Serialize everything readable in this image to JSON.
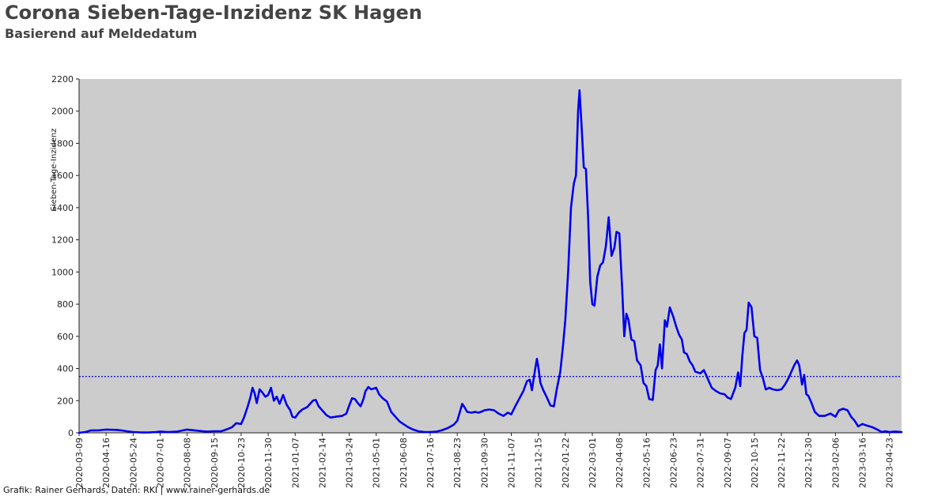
{
  "title": "Corona Sieben-Tage-Inzidenz SK Hagen",
  "subtitle": "Basierend auf Meldedatum",
  "footer": "Grafik: Rainer Gerhards, Daten: RKI | www.rainer-gerhards.de",
  "colors": {
    "plot_background": "#cccccc",
    "line": "#0000ee",
    "threshold": "#0000cc"
  },
  "chart_data": {
    "type": "line",
    "title": "Corona Sieben-Tage-Inzidenz SK Hagen",
    "subtitle": "Basierend auf Meldedatum",
    "xlabel": "",
    "ylabel": "Sieben-Tage-Inzidenz",
    "xlim": [
      "2020-03-09",
      "2023-05-10"
    ],
    "ylim": [
      0,
      2200
    ],
    "yticks": [
      0,
      200,
      400,
      600,
      800,
      1000,
      1200,
      1400,
      1600,
      1800,
      2000,
      2200
    ],
    "xticks": [
      "2020-03-09",
      "2020-04-16",
      "2020-05-24",
      "2020-07-01",
      "2020-08-08",
      "2020-09-15",
      "2020-10-23",
      "2020-11-30",
      "2021-01-07",
      "2021-02-14",
      "2021-03-24",
      "2021-05-01",
      "2021-06-08",
      "2021-07-16",
      "2021-08-23",
      "2021-09-30",
      "2021-11-07",
      "2021-12-15",
      "2022-01-22",
      "2022-03-01",
      "2022-04-08",
      "2022-05-16",
      "2022-06-23",
      "2022-07-31",
      "2022-09-07",
      "2022-10-15",
      "2022-11-22",
      "2022-12-30",
      "2023-02-06",
      "2023-03-16",
      "2023-04-23"
    ],
    "grid": false,
    "reference_line": {
      "y": 350,
      "style": "dotted"
    },
    "series": [
      {
        "points": [
          [
            "2020-03-09",
            0
          ],
          [
            "2020-03-18",
            5
          ],
          [
            "2020-03-26",
            15
          ],
          [
            "2020-04-05",
            15
          ],
          [
            "2020-04-16",
            20
          ],
          [
            "2020-04-30",
            18
          ],
          [
            "2020-05-07",
            15
          ],
          [
            "2020-05-15",
            10
          ],
          [
            "2020-05-24",
            5
          ],
          [
            "2020-06-05",
            2
          ],
          [
            "2020-06-15",
            2
          ],
          [
            "2020-06-25",
            5
          ],
          [
            "2020-07-01",
            8
          ],
          [
            "2020-07-12",
            5
          ],
          [
            "2020-07-25",
            8
          ],
          [
            "2020-08-08",
            20
          ],
          [
            "2020-08-25",
            12
          ],
          [
            "2020-09-05",
            8
          ],
          [
            "2020-09-15",
            10
          ],
          [
            "2020-09-25",
            10
          ],
          [
            "2020-10-02",
            20
          ],
          [
            "2020-10-10",
            35
          ],
          [
            "2020-10-16",
            60
          ],
          [
            "2020-10-23",
            55
          ],
          [
            "2020-10-27",
            95
          ],
          [
            "2020-11-01",
            160
          ],
          [
            "2020-11-05",
            220
          ],
          [
            "2020-11-08",
            280
          ],
          [
            "2020-11-11",
            245
          ],
          [
            "2020-11-14",
            185
          ],
          [
            "2020-11-18",
            270
          ],
          [
            "2020-11-22",
            250
          ],
          [
            "2020-11-26",
            225
          ],
          [
            "2020-11-30",
            235
          ],
          [
            "2020-12-04",
            280
          ],
          [
            "2020-12-08",
            200
          ],
          [
            "2020-12-12",
            225
          ],
          [
            "2020-12-16",
            180
          ],
          [
            "2020-12-21",
            235
          ],
          [
            "2020-12-26",
            175
          ],
          [
            "2020-12-31",
            140
          ],
          [
            "2021-01-03",
            100
          ],
          [
            "2021-01-07",
            95
          ],
          [
            "2021-01-12",
            125
          ],
          [
            "2021-01-17",
            145
          ],
          [
            "2021-01-24",
            160
          ],
          [
            "2021-02-01",
            200
          ],
          [
            "2021-02-05",
            205
          ],
          [
            "2021-02-09",
            165
          ],
          [
            "2021-02-14",
            140
          ],
          [
            "2021-02-20",
            110
          ],
          [
            "2021-02-26",
            95
          ],
          [
            "2021-03-05",
            100
          ],
          [
            "2021-03-14",
            105
          ],
          [
            "2021-03-20",
            120
          ],
          [
            "2021-03-24",
            170
          ],
          [
            "2021-03-28",
            215
          ],
          [
            "2021-04-01",
            210
          ],
          [
            "2021-04-05",
            185
          ],
          [
            "2021-04-09",
            165
          ],
          [
            "2021-04-13",
            210
          ],
          [
            "2021-04-16",
            260
          ],
          [
            "2021-04-20",
            285
          ],
          [
            "2021-04-24",
            270
          ],
          [
            "2021-05-01",
            280
          ],
          [
            "2021-05-05",
            240
          ],
          [
            "2021-05-10",
            215
          ],
          [
            "2021-05-16",
            195
          ],
          [
            "2021-05-22",
            130
          ],
          [
            "2021-05-29",
            95
          ],
          [
            "2021-06-03",
            70
          ],
          [
            "2021-06-08",
            55
          ],
          [
            "2021-06-15",
            35
          ],
          [
            "2021-06-22",
            20
          ],
          [
            "2021-06-29",
            10
          ],
          [
            "2021-07-08",
            5
          ],
          [
            "2021-07-16",
            5
          ],
          [
            "2021-07-25",
            8
          ],
          [
            "2021-08-01",
            15
          ],
          [
            "2021-08-10",
            30
          ],
          [
            "2021-08-18",
            50
          ],
          [
            "2021-08-23",
            75
          ],
          [
            "2021-08-26",
            120
          ],
          [
            "2021-08-30",
            180
          ],
          [
            "2021-09-02",
            160
          ],
          [
            "2021-09-06",
            130
          ],
          [
            "2021-09-12",
            125
          ],
          [
            "2021-09-17",
            130
          ],
          [
            "2021-09-22",
            125
          ],
          [
            "2021-09-28",
            135
          ],
          [
            "2021-09-30",
            140
          ],
          [
            "2021-10-07",
            145
          ],
          [
            "2021-10-14",
            140
          ],
          [
            "2021-10-20",
            120
          ],
          [
            "2021-10-27",
            105
          ],
          [
            "2021-11-02",
            125
          ],
          [
            "2021-11-07",
            115
          ],
          [
            "2021-11-12",
            160
          ],
          [
            "2021-11-18",
            210
          ],
          [
            "2021-11-24",
            260
          ],
          [
            "2021-11-29",
            320
          ],
          [
            "2021-12-03",
            330
          ],
          [
            "2021-12-06",
            265
          ],
          [
            "2021-12-10",
            380
          ],
          [
            "2021-12-13",
            460
          ],
          [
            "2021-12-15",
            410
          ],
          [
            "2021-12-18",
            310
          ],
          [
            "2021-12-22",
            265
          ],
          [
            "2021-12-27",
            220
          ],
          [
            "2022-01-01",
            170
          ],
          [
            "2022-01-06",
            165
          ],
          [
            "2022-01-10",
            270
          ],
          [
            "2022-01-15",
            380
          ],
          [
            "2022-01-19",
            550
          ],
          [
            "2022-01-22",
            700
          ],
          [
            "2022-01-26",
            1000
          ],
          [
            "2022-01-30",
            1400
          ],
          [
            "2022-02-03",
            1550
          ],
          [
            "2022-02-06",
            1600
          ],
          [
            "2022-02-09",
            2000
          ],
          [
            "2022-02-11",
            2130
          ],
          [
            "2022-02-14",
            1900
          ],
          [
            "2022-02-17",
            1650
          ],
          [
            "2022-02-20",
            1640
          ],
          [
            "2022-02-23",
            1350
          ],
          [
            "2022-02-26",
            940
          ],
          [
            "2022-03-01",
            800
          ],
          [
            "2022-03-04",
            790
          ],
          [
            "2022-03-08",
            970
          ],
          [
            "2022-03-12",
            1040
          ],
          [
            "2022-03-16",
            1060
          ],
          [
            "2022-03-20",
            1160
          ],
          [
            "2022-03-24",
            1340
          ],
          [
            "2022-03-28",
            1100
          ],
          [
            "2022-04-01",
            1150
          ],
          [
            "2022-04-04",
            1250
          ],
          [
            "2022-04-08",
            1240
          ],
          [
            "2022-04-12",
            900
          ],
          [
            "2022-04-15",
            600
          ],
          [
            "2022-04-18",
            740
          ],
          [
            "2022-04-21",
            700
          ],
          [
            "2022-04-25",
            580
          ],
          [
            "2022-04-29",
            570
          ],
          [
            "2022-05-03",
            450
          ],
          [
            "2022-05-08",
            420
          ],
          [
            "2022-05-12",
            310
          ],
          [
            "2022-05-16",
            290
          ],
          [
            "2022-05-20",
            210
          ],
          [
            "2022-05-25",
            205
          ],
          [
            "2022-05-29",
            390
          ],
          [
            "2022-06-01",
            420
          ],
          [
            "2022-06-04",
            550
          ],
          [
            "2022-06-07",
            400
          ],
          [
            "2022-06-11",
            700
          ],
          [
            "2022-06-14",
            660
          ],
          [
            "2022-06-18",
            780
          ],
          [
            "2022-06-23",
            720
          ],
          [
            "2022-06-27",
            660
          ],
          [
            "2022-07-01",
            610
          ],
          [
            "2022-07-05",
            580
          ],
          [
            "2022-07-08",
            500
          ],
          [
            "2022-07-12",
            490
          ],
          [
            "2022-07-16",
            445
          ],
          [
            "2022-07-20",
            420
          ],
          [
            "2022-07-24",
            380
          ],
          [
            "2022-07-31",
            370
          ],
          [
            "2022-08-05",
            390
          ],
          [
            "2022-08-10",
            340
          ],
          [
            "2022-08-16",
            280
          ],
          [
            "2022-08-22",
            260
          ],
          [
            "2022-08-28",
            245
          ],
          [
            "2022-09-03",
            240
          ],
          [
            "2022-09-07",
            220
          ],
          [
            "2022-09-12",
            210
          ],
          [
            "2022-09-18",
            280
          ],
          [
            "2022-09-22",
            375
          ],
          [
            "2022-09-25",
            290
          ],
          [
            "2022-09-28",
            480
          ],
          [
            "2022-10-01",
            620
          ],
          [
            "2022-10-04",
            640
          ],
          [
            "2022-10-07",
            810
          ],
          [
            "2022-10-11",
            780
          ],
          [
            "2022-10-15",
            600
          ],
          [
            "2022-10-19",
            590
          ],
          [
            "2022-10-23",
            390
          ],
          [
            "2022-10-27",
            340
          ],
          [
            "2022-10-31",
            270
          ],
          [
            "2022-11-05",
            280
          ],
          [
            "2022-11-10",
            270
          ],
          [
            "2022-11-16",
            265
          ],
          [
            "2022-11-22",
            270
          ],
          [
            "2022-11-27",
            300
          ],
          [
            "2022-12-02",
            340
          ],
          [
            "2022-12-06",
            380
          ],
          [
            "2022-12-10",
            420
          ],
          [
            "2022-12-14",
            450
          ],
          [
            "2022-12-17",
            420
          ],
          [
            "2022-12-21",
            300
          ],
          [
            "2022-12-24",
            360
          ],
          [
            "2022-12-27",
            240
          ],
          [
            "2022-12-30",
            230
          ],
          [
            "2023-01-03",
            190
          ],
          [
            "2023-01-08",
            130
          ],
          [
            "2023-01-14",
            105
          ],
          [
            "2023-01-22",
            105
          ],
          [
            "2023-01-30",
            120
          ],
          [
            "2023-02-06",
            100
          ],
          [
            "2023-02-11",
            140
          ],
          [
            "2023-02-17",
            150
          ],
          [
            "2023-02-23",
            140
          ],
          [
            "2023-02-28",
            100
          ],
          [
            "2023-03-05",
            75
          ],
          [
            "2023-03-10",
            40
          ],
          [
            "2023-03-16",
            55
          ],
          [
            "2023-03-22",
            45
          ],
          [
            "2023-03-30",
            35
          ],
          [
            "2023-04-06",
            20
          ],
          [
            "2023-04-12",
            5
          ],
          [
            "2023-04-17",
            10
          ],
          [
            "2023-04-23",
            5
          ],
          [
            "2023-05-01",
            8
          ],
          [
            "2023-05-10",
            5
          ]
        ]
      }
    ]
  }
}
